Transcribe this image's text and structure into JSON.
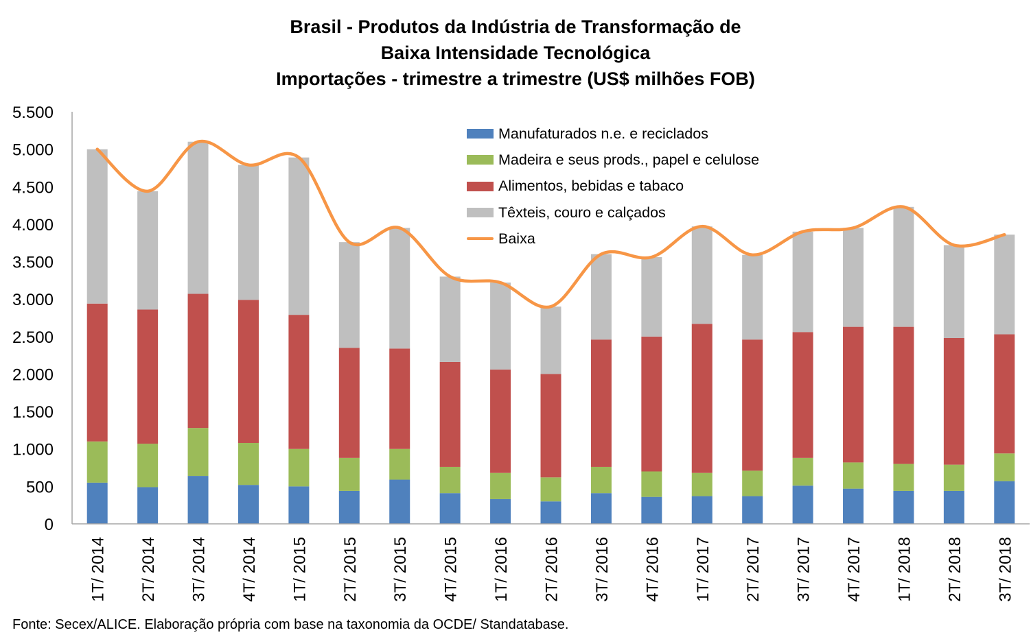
{
  "chart_data": {
    "type": "bar",
    "stacked": true,
    "title": [
      "Brasil - Produtos da Indústria de Transformação de",
      "Baixa Intensidade Tecnológica",
      "Importações - trimestre a trimestre (US$ milhões FOB)"
    ],
    "xlabel": "",
    "ylabel": "",
    "ylim": [
      0,
      5500
    ],
    "yticks": [
      0,
      500,
      1000,
      1500,
      2000,
      2500,
      3000,
      3500,
      4000,
      4500,
      5000,
      5500
    ],
    "ytick_labels": [
      "0",
      "500",
      "1.000",
      "1.500",
      "2.000",
      "2.500",
      "3.000",
      "3.500",
      "4.000",
      "4.500",
      "5.000",
      "5.500"
    ],
    "grid": false,
    "legend_position": "top-center",
    "categories": [
      "1T/ 2014",
      "2T/ 2014",
      "3T/ 2014",
      "4T/ 2014",
      "1T/ 2015",
      "2T/ 2015",
      "3T/ 2015",
      "4T/ 2015",
      "1T/ 2016",
      "2T/ 2016",
      "3T/ 2016",
      "4T/ 2016",
      "1T/ 2017",
      "2T/ 2017",
      "3T/ 2017",
      "4T/ 2017",
      "1T/ 2018",
      "2T/ 2018",
      "3T/ 2018"
    ],
    "series": [
      {
        "name": "Manufaturados n.e. e reciclados",
        "kind": "bar",
        "color": "#4F81BD",
        "values": [
          550,
          490,
          640,
          520,
          500,
          440,
          590,
          410,
          330,
          300,
          410,
          360,
          370,
          370,
          510,
          470,
          440,
          440,
          570
        ]
      },
      {
        "name": "Madeira e seus prods., papel e celulose",
        "kind": "bar",
        "color": "#9BBB59",
        "values": [
          550,
          580,
          640,
          560,
          500,
          440,
          410,
          350,
          350,
          320,
          350,
          340,
          310,
          340,
          370,
          350,
          360,
          350,
          370
        ]
      },
      {
        "name": "Alimentos, bebidas e tabaco",
        "kind": "bar",
        "color": "#C0504D",
        "values": [
          1840,
          1790,
          1790,
          1910,
          1790,
          1470,
          1340,
          1400,
          1380,
          1380,
          1700,
          1800,
          1990,
          1750,
          1680,
          1810,
          1830,
          1690,
          1590
        ]
      },
      {
        "name": "Têxteis, couro e calçados",
        "kind": "bar",
        "color": "#BFBFBF",
        "values": [
          2060,
          1580,
          2030,
          1800,
          2100,
          1410,
          1610,
          1140,
          1160,
          900,
          1140,
          1060,
          1300,
          1130,
          1340,
          1320,
          1600,
          1240,
          1330
        ]
      },
      {
        "name": "Baixa",
        "kind": "line",
        "smooth": true,
        "color": "#F79646",
        "values": [
          5000,
          4440,
          5100,
          4790,
          4890,
          3760,
          3950,
          3300,
          3220,
          2900,
          3600,
          3560,
          3970,
          3590,
          3900,
          3950,
          4230,
          3720,
          3860
        ]
      }
    ]
  },
  "footnote": "Fonte: Secex/ALICE. Elaboração própria com base na taxonomia da OCDE/ Standatabase."
}
